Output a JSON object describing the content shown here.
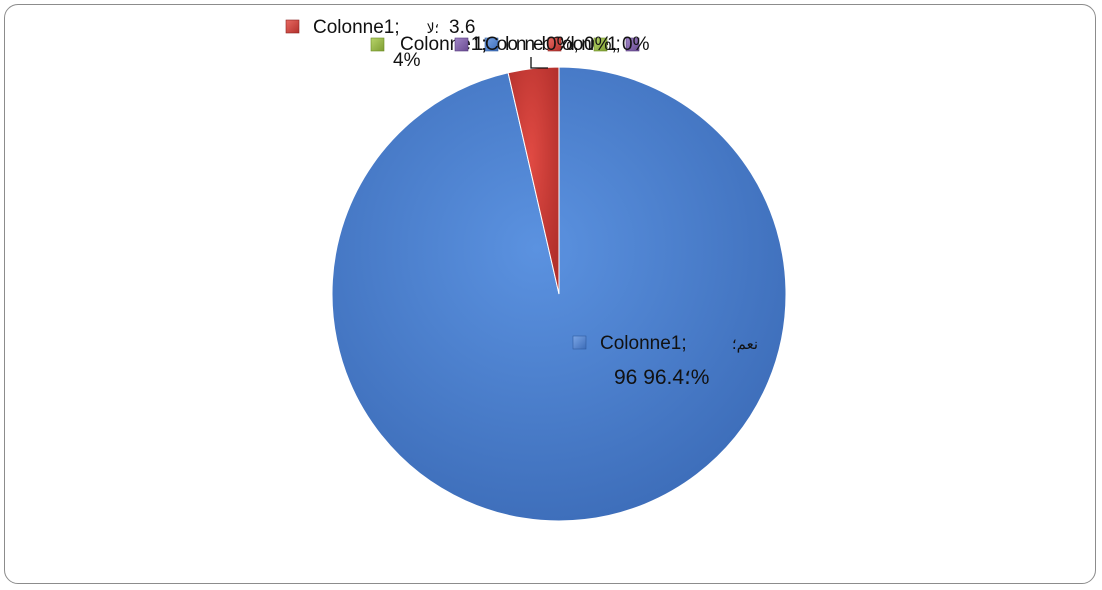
{
  "chart_data": {
    "type": "pie",
    "series_name": "Colonne1",
    "categories": [
      "نعم",
      "لا",
      "",
      "",
      ""
    ],
    "values": [
      96.4,
      3.6,
      0,
      0,
      0
    ],
    "colors": [
      "#4a7fd0",
      "#cf3b36",
      "#97b941",
      "#8160a8",
      "#4a7fd0"
    ],
    "data_labels": {
      "main": {
        "line1_series": "Colonne1;",
        "line1_category": "نعم؛",
        "line2": "96 ؛96.4%"
      },
      "small": {
        "line1_series": "Colonne1;",
        "line1_category": "؛لا",
        "line1_value": "3.6",
        "line2": "4%"
      },
      "overlap_back": "Colonne1;",
      "overlap_mid": "1;ColonnebColonne1;",
      "overlap_front": "0%, 0%, 0%"
    }
  }
}
